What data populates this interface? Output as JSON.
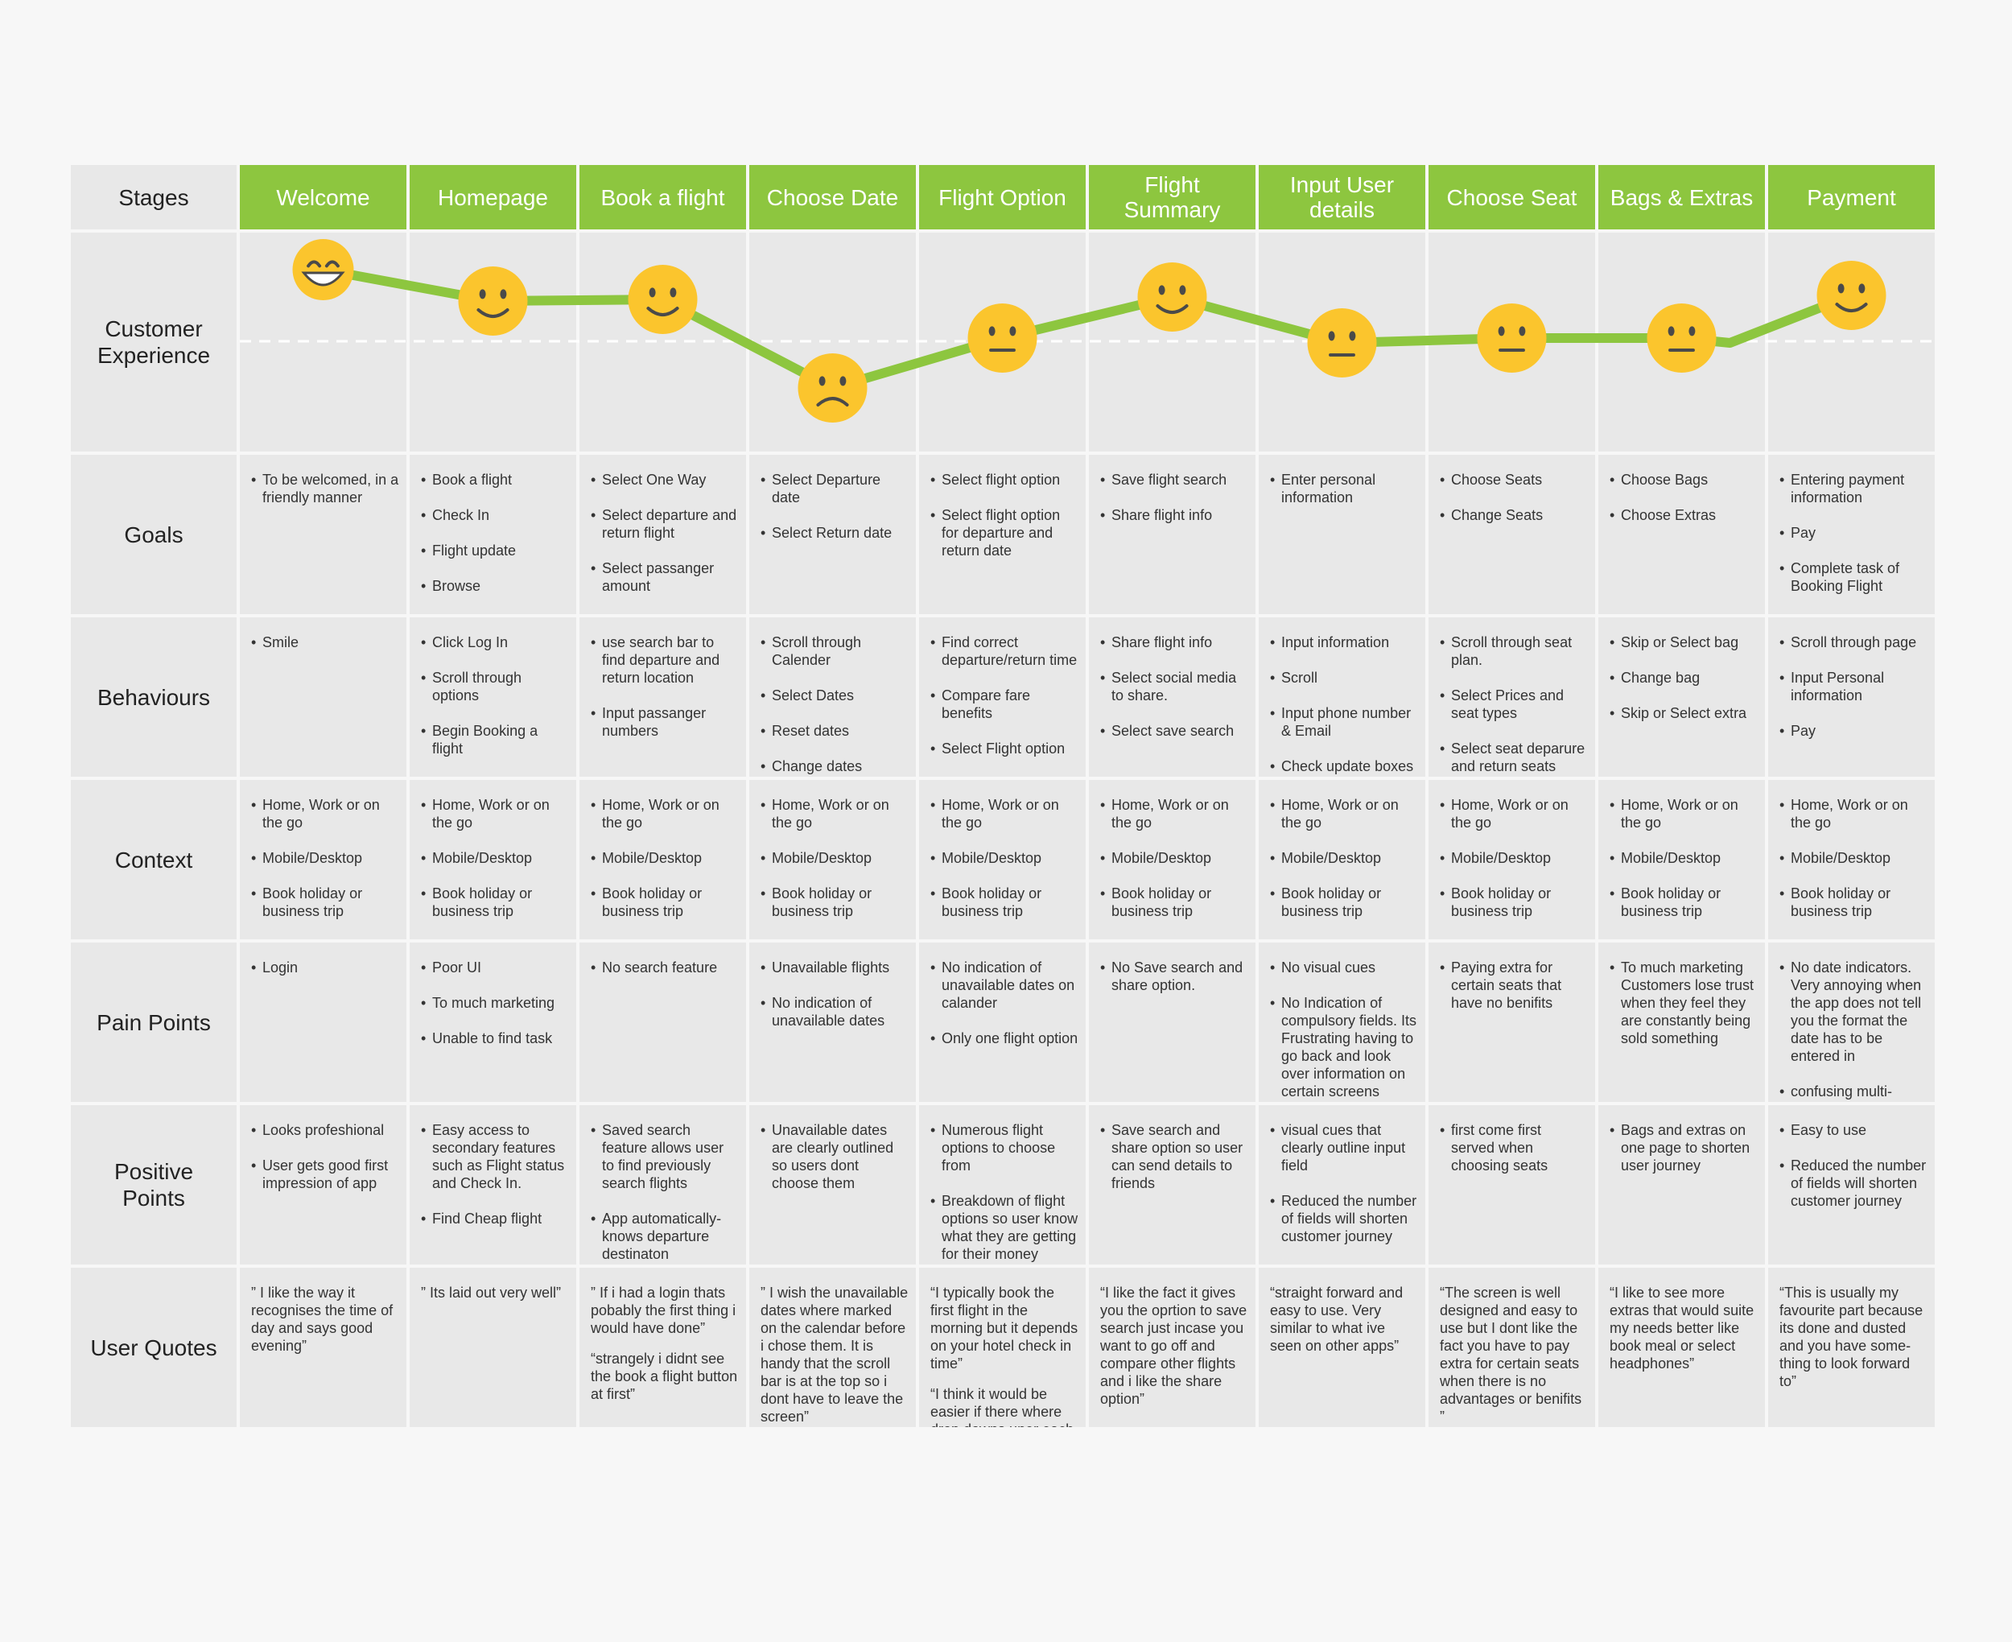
{
  "stages": {
    "label": "Stages",
    "items": [
      "Welcome",
      "Homepage",
      "Book a flight",
      "Choose Date",
      "Flight Option",
      "Flight Summary",
      "Input User details",
      "Choose Seat",
      "Bags & Extras",
      "Payment"
    ]
  },
  "rows": [
    {
      "label": "Customer Experience"
    },
    {
      "label": "Goals",
      "cells": [
        [
          "To be welcomed, in a friendly manner"
        ],
        [
          "Book a flight",
          "Check In",
          "Flight update",
          "Browse"
        ],
        [
          "Select One Way",
          "Select departure and return flight",
          "Select passanger amount"
        ],
        [
          "Select Departure date",
          "Select Return date"
        ],
        [
          "Select flight option",
          "Select flight option for departure and return date"
        ],
        [
          "Save flight search",
          "Share flight info"
        ],
        [
          "Enter personal information"
        ],
        [
          "Choose Seats",
          "Change Seats"
        ],
        [
          "Choose Bags",
          "Choose Extras"
        ],
        [
          "Entering payment information",
          "Pay",
          "Complete task of Booking Flight"
        ]
      ]
    },
    {
      "label": "Behaviours",
      "cells": [
        [
          "Smile"
        ],
        [
          "Click Log In",
          "Scroll through options",
          "Begin Booking a flight"
        ],
        [
          "use search bar to find departure and return location",
          "Input passanger numbers"
        ],
        [
          "Scroll through Calender",
          "Select Dates",
          "Reset dates",
          "Change dates"
        ],
        [
          "Find correct departure/return time",
          "Compare fare benefits",
          "Select Flight option"
        ],
        [
          "Share flight info",
          "Select social media to share.",
          "Select save search"
        ],
        [
          "Input information",
          "Scroll",
          "Input phone number & Email",
          "Check update boxes"
        ],
        [
          "Scroll through seat plan.",
          "Select Prices and seat types",
          "Select seat deparure and return seats"
        ],
        [
          "Skip or Select bag",
          "Change bag",
          "Skip or Select extra"
        ],
        [
          "Scroll through page",
          "Input Personal information",
          "Pay"
        ]
      ]
    },
    {
      "label": "Context",
      "cells": [
        [
          "Home, Work or on the go",
          "Mobile/Desktop",
          "Book holiday or business trip"
        ],
        [
          "Home, Work or on the go",
          "Mobile/Desktop",
          "Book holiday or business trip"
        ],
        [
          "Home, Work or on the go",
          "Mobile/Desktop",
          "Book holiday or business trip"
        ],
        [
          "Home, Work or on the go",
          "Mobile/Desktop",
          "Book holiday or business trip"
        ],
        [
          "Home, Work or on the go",
          "Mobile/Desktop",
          "Book holiday or business trip"
        ],
        [
          "Home, Work or on the go",
          "Mobile/Desktop",
          "Book holiday or business trip"
        ],
        [
          "Home, Work or on the go",
          "Mobile/Desktop",
          "Book holiday or business trip"
        ],
        [
          "Home, Work or on the go",
          "Mobile/Desktop",
          "Book holiday or business trip"
        ],
        [
          "Home, Work or on the go",
          "Mobile/Desktop",
          "Book holiday or business trip"
        ],
        [
          "Home, Work or on the go",
          "Mobile/Desktop",
          "Book holiday or business trip"
        ]
      ]
    },
    {
      "label": "Pain Points",
      "cells": [
        [
          "Login"
        ],
        [
          "Poor UI",
          "To much marketing",
          "Unable to find task"
        ],
        [
          "No search feature"
        ],
        [
          "Unavailable flights",
          "No indication of unavailable dates"
        ],
        [
          "No indication of unavailable dates on calander",
          "Only one flight option"
        ],
        [
          "No Save search and share option."
        ],
        [
          "No visual cues",
          "No Indication of compulsory fields. Its Frustrating having to go back and look over information on certain screens"
        ],
        [
          "Paying extra for certain seats that have no benifits"
        ],
        [
          "To much marketing Customers lose trust when they feel they are constantly being sold something"
        ],
        [
          "No date indicators. Very annoying when the app does not tell you the format the date has to be entered in",
          "confusing multi-column forms"
        ]
      ]
    },
    {
      "label": "Positive Points",
      "cells": [
        [
          "Looks profeshional",
          "User gets good first impression of app"
        ],
        [
          "Easy access to secondary features such as Flight status and Check In.",
          "Find Cheap flight"
        ],
        [
          "Saved search feature allows user to find previously search flights",
          "App automatically-knows departure destinaton"
        ],
        [
          "Unavailable dates are clearly outlined so users dont choose them"
        ],
        [
          "Numerous flight options to choose from",
          "Breakdown of flight options so user know what they are getting for their money"
        ],
        [
          "Save search and share option so user can send details to friends"
        ],
        [
          "visual cues that clearly outline input field",
          "Reduced the number of fields will shorten customer journey"
        ],
        [
          "first come first served when choosing seats"
        ],
        [
          "Bags and extras on one page to shorten user journey"
        ],
        [
          "Easy to use",
          "Reduced the number of fields will shorten customer journey"
        ]
      ]
    },
    {
      "label": "User Quotes",
      "cells": [
        [
          "” I like the way it recognises the time of day and says good evening”"
        ],
        [
          "” Its laid out very well”"
        ],
        [
          "” If i had a login thats pobably the first thing i would have done”",
          "“strangely i didnt see the book a flight button at first”"
        ],
        [
          "” I wish the unavailable dates where marked on the calendar before i chose them. It is handy that the scroll bar is at the top so i dont have to leave the screen”"
        ],
        [
          "“I typically book the first flight in the morning but it depends on your hotel check in time”",
          "“I think it would be  easier if there where drop downs uner each plan that tells you whats included”"
        ],
        [
          "“I like the fact it gives you the oprtion to save search just incase you want to go off and compare other flights and i like the share option”"
        ],
        [
          "“straight forward and easy to use. Very similar to what ive seen on other apps”"
        ],
        [
          "“The screen is well designed and easy to use but I dont like the fact you have to pay extra for certain seats when there is no advantages or benifits ”"
        ],
        [
          "“I like to see more extras that would suite my needs better like book meal or select headphones”"
        ],
        [
          "“This is usually my favourite part because its done and dusted and you have some-thing to look forward to”"
        ]
      ]
    }
  ]
}
